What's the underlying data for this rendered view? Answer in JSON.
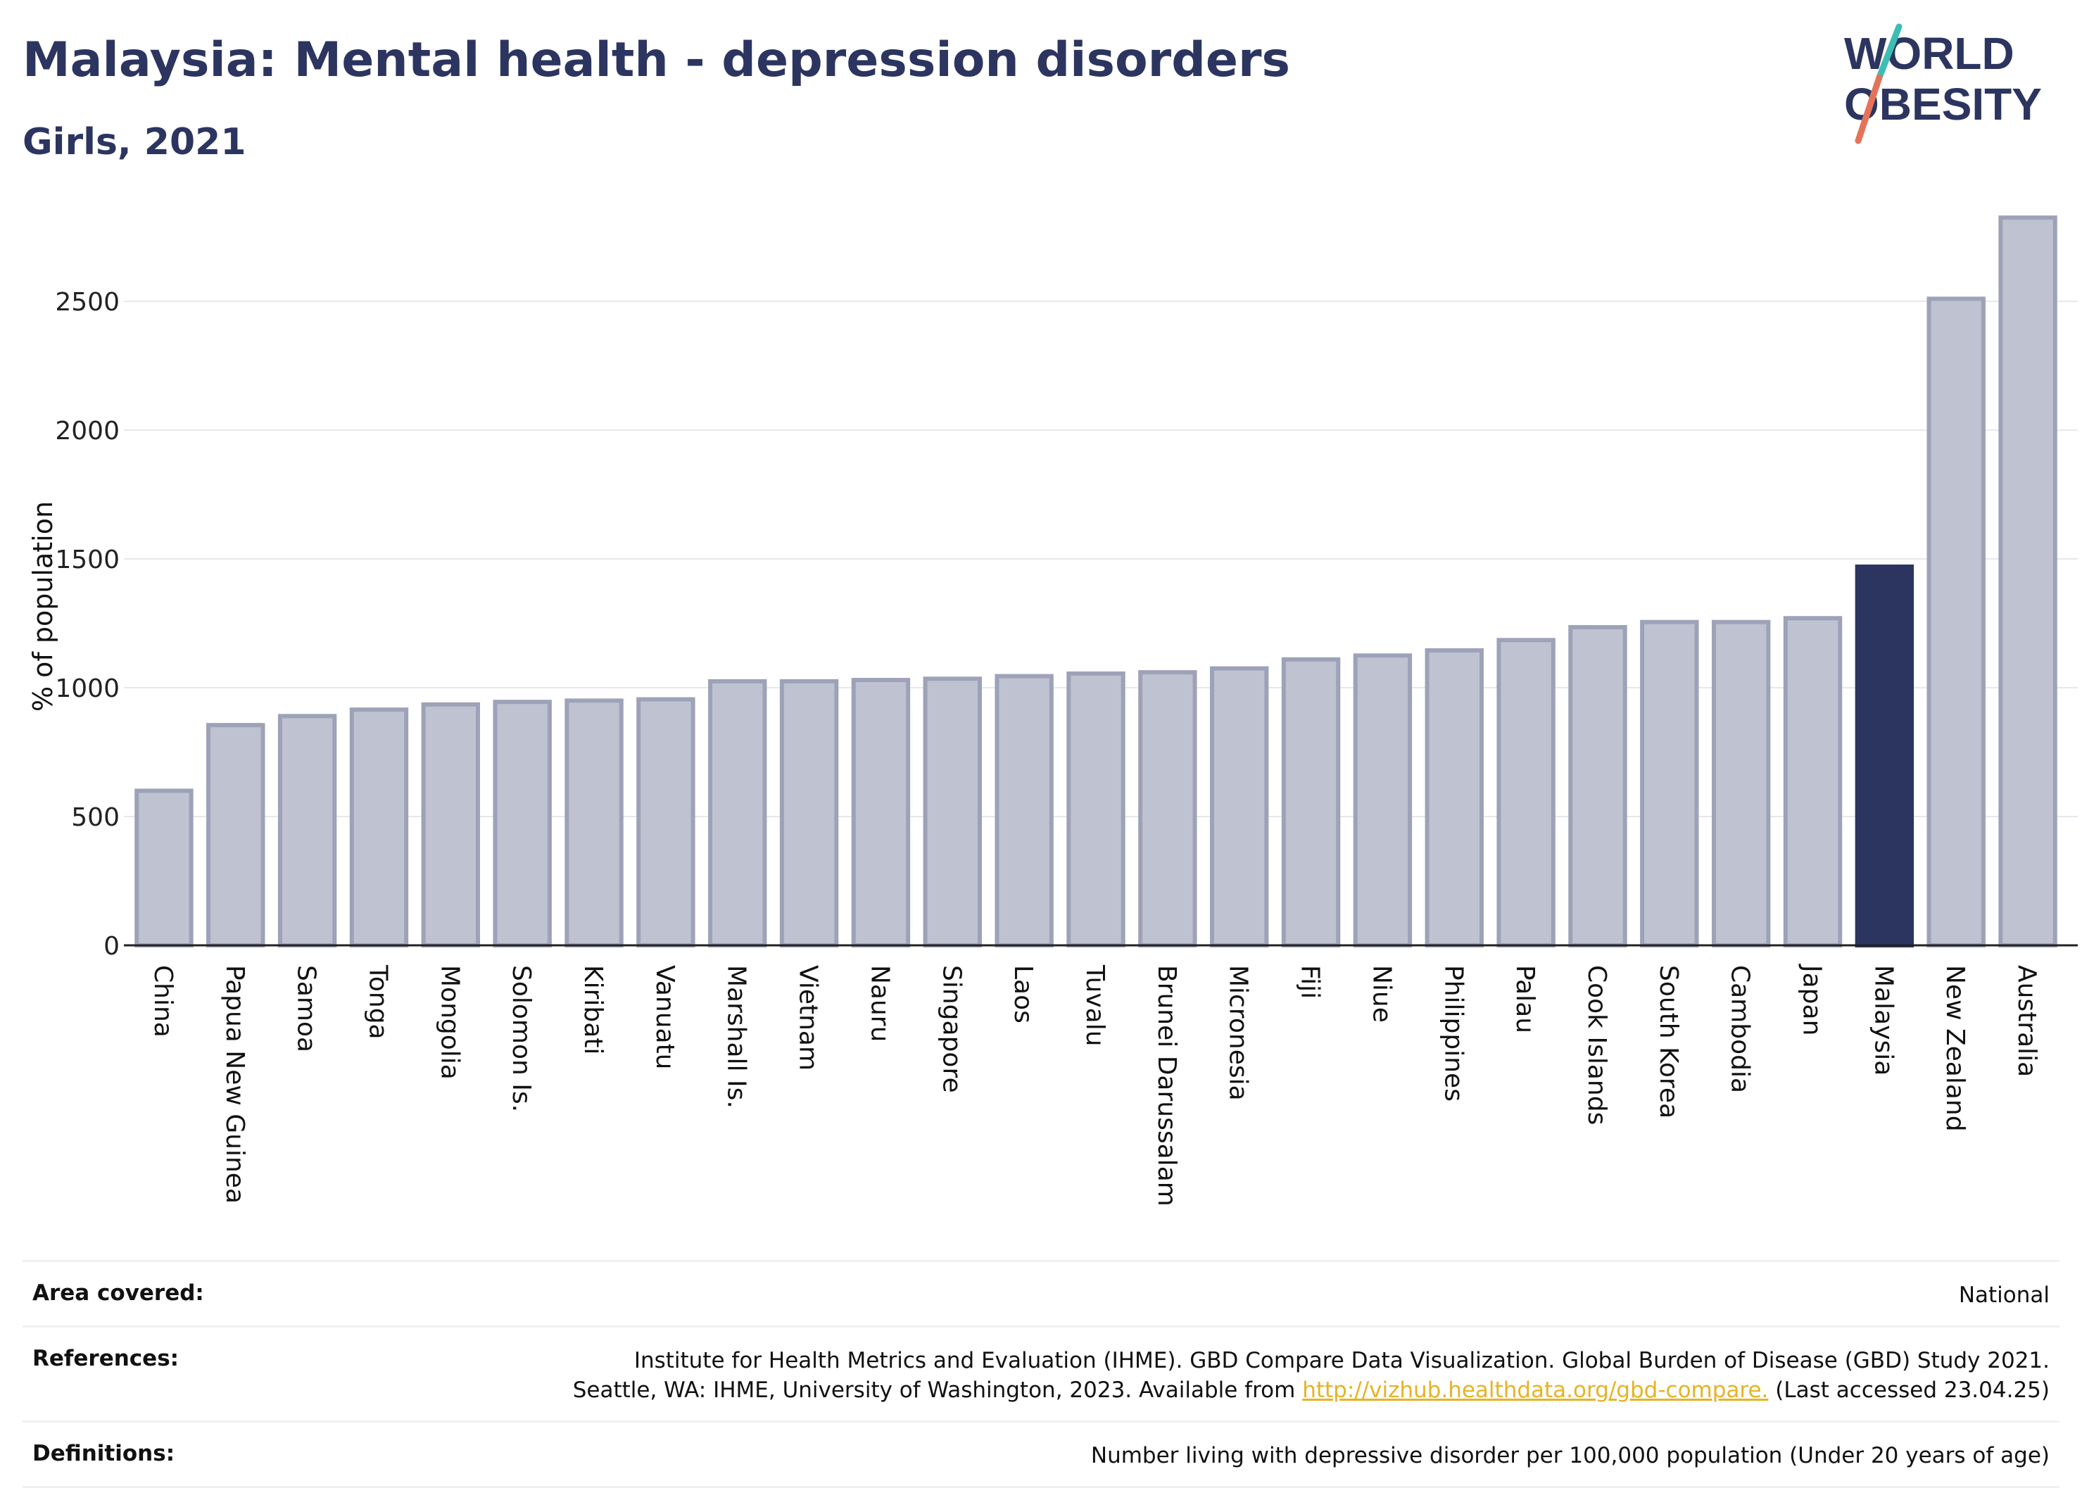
{
  "header": {
    "title": "Malaysia: Mental health - depression disorders",
    "subtitle": "Girls, 2021"
  },
  "logo": {
    "line1": "WORLD",
    "line2": "OBESITY",
    "slash_colors": [
      "#3dbdb5",
      "#e5735a"
    ],
    "text_color": "#2c3560"
  },
  "colors": {
    "bar": "#bfc2d0",
    "bar_border": "#9ea2b8",
    "highlight": "#2c3560",
    "grid": "#e6e8ec",
    "axis": "#222222"
  },
  "chart_data": {
    "type": "bar",
    "title": "Malaysia: Mental health - depression disorders",
    "subtitle": "Girls, 2021",
    "ylabel": "% of population",
    "xlabel": "",
    "ylim": [
      0,
      2850
    ],
    "yticks": [
      0,
      500,
      1000,
      1500,
      2000,
      2500
    ],
    "grid": true,
    "highlight": "Malaysia",
    "categories": [
      "China",
      "Papua New Guinea",
      "Samoa",
      "Tonga",
      "Mongolia",
      "Solomon Is.",
      "Kiribati",
      "Vanuatu",
      "Marshall Is.",
      "Vietnam",
      "Nauru",
      "Singapore",
      "Laos",
      "Tuvalu",
      "Brunei Darussalam",
      "Micronesia",
      "Fiji",
      "Niue",
      "Philippines",
      "Palau",
      "Cook Islands",
      "South Korea",
      "Cambodia",
      "Japan",
      "Malaysia",
      "New Zealand",
      "Australia"
    ],
    "values": [
      600,
      855,
      890,
      915,
      935,
      945,
      950,
      955,
      1025,
      1025,
      1030,
      1035,
      1045,
      1055,
      1060,
      1075,
      1110,
      1125,
      1145,
      1185,
      1235,
      1255,
      1255,
      1270,
      1470,
      2510,
      2825
    ]
  },
  "footer": {
    "area_label": "Area covered:",
    "area_value": "National",
    "references_label": "References:",
    "references_line1": "Institute for Health Metrics and Evaluation (IHME). GBD Compare Data Visualization. Global Burden of Disease (GBD) Study 2021.",
    "references_line2_pre": "Seattle, WA: IHME, University of Washington, 2023. Available from",
    "references_link": "http://vizhub.healthdata.org/gbd-compare.",
    "references_line2_post": "(Last accessed 23.04.25)",
    "definitions_label": "Definitions:",
    "definitions_value": "Number living with depressive disorder per 100,000 population (Under 20 years of age)"
  }
}
